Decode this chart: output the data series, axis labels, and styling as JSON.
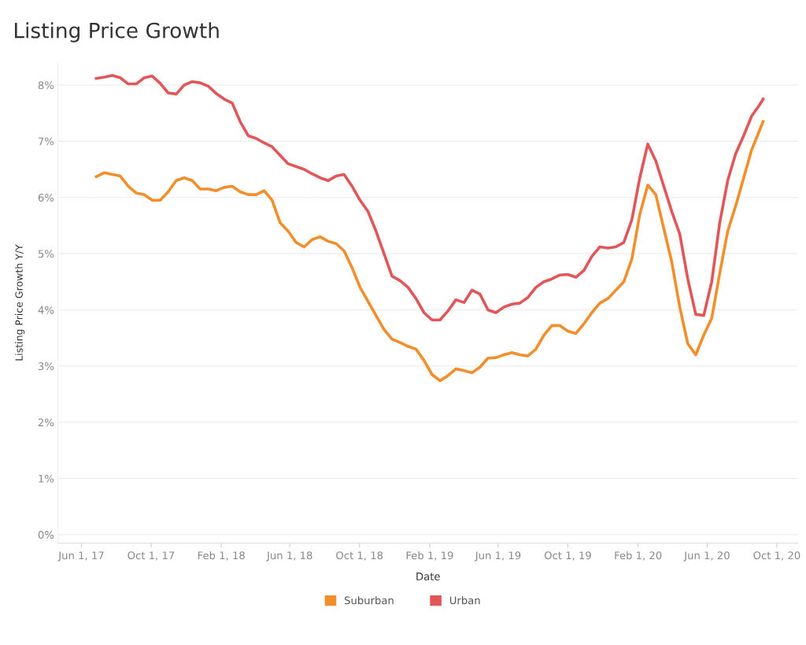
{
  "chart_data": {
    "type": "line",
    "title": "Listing Price Growth",
    "xlabel": "Date",
    "ylabel": "Listing Price Growth Y/Y",
    "x": [
      "2017-06-27",
      "2017-07-11",
      "2017-07-25",
      "2017-08-08",
      "2017-08-22",
      "2017-09-05",
      "2017-09-19",
      "2017-10-03",
      "2017-10-17",
      "2017-10-31",
      "2017-11-14",
      "2017-11-28",
      "2017-12-12",
      "2017-12-26",
      "2018-01-09",
      "2018-01-23",
      "2018-02-06",
      "2018-02-20",
      "2018-03-06",
      "2018-03-20",
      "2018-04-03",
      "2018-04-17",
      "2018-05-01",
      "2018-05-15",
      "2018-05-29",
      "2018-06-12",
      "2018-06-26",
      "2018-07-10",
      "2018-07-24",
      "2018-08-07",
      "2018-08-21",
      "2018-09-04",
      "2018-09-18",
      "2018-10-02",
      "2018-10-16",
      "2018-10-30",
      "2018-11-13",
      "2018-11-27",
      "2018-12-11",
      "2018-12-25",
      "2019-01-08",
      "2019-01-22",
      "2019-02-05",
      "2019-02-19",
      "2019-03-05",
      "2019-03-19",
      "2019-04-02",
      "2019-04-16",
      "2019-04-30",
      "2019-05-14",
      "2019-05-28",
      "2019-06-11",
      "2019-06-25",
      "2019-07-09",
      "2019-07-23",
      "2019-08-06",
      "2019-08-20",
      "2019-09-03",
      "2019-09-17",
      "2019-10-01",
      "2019-10-15",
      "2019-10-29",
      "2019-11-12",
      "2019-11-26",
      "2019-12-10",
      "2019-12-24",
      "2020-01-07",
      "2020-01-21",
      "2020-02-04",
      "2020-02-18",
      "2020-03-03",
      "2020-03-17",
      "2020-03-31",
      "2020-04-14",
      "2020-04-28",
      "2020-05-12",
      "2020-05-26",
      "2020-06-09",
      "2020-06-23",
      "2020-07-07",
      "2020-07-21",
      "2020-08-04",
      "2020-08-18",
      "2020-09-01",
      "2020-09-07"
    ],
    "series": [
      {
        "name": "Suburban",
        "color": "#f28e2b",
        "values": [
          6.37,
          6.44,
          6.41,
          6.38,
          6.2,
          6.08,
          6.05,
          5.95,
          5.95,
          6.1,
          6.3,
          6.35,
          6.3,
          6.15,
          6.15,
          6.12,
          6.18,
          6.2,
          6.1,
          6.05,
          6.05,
          6.12,
          5.95,
          5.55,
          5.4,
          5.2,
          5.12,
          5.25,
          5.3,
          5.22,
          5.18,
          5.05,
          4.75,
          4.4,
          4.15,
          3.9,
          3.65,
          3.48,
          3.42,
          3.35,
          3.3,
          3.1,
          2.85,
          2.74,
          2.83,
          2.95,
          2.92,
          2.88,
          2.98,
          3.14,
          3.15,
          3.2,
          3.24,
          3.2,
          3.18,
          3.3,
          3.55,
          3.72,
          3.72,
          3.62,
          3.58,
          3.75,
          3.95,
          4.12,
          4.2,
          4.35,
          4.5,
          4.9,
          5.7,
          6.22,
          6.05,
          5.45,
          4.85,
          4.05,
          3.4,
          3.2,
          3.55,
          3.85,
          4.65,
          5.4,
          5.85,
          6.35,
          6.85,
          7.2,
          7.35
        ]
      },
      {
        "name": "Urban",
        "color": "#e15759",
        "values": [
          8.12,
          8.14,
          8.17,
          8.13,
          8.02,
          8.02,
          8.13,
          8.16,
          8.03,
          7.86,
          7.84,
          8.0,
          8.06,
          8.04,
          7.98,
          7.85,
          7.75,
          7.68,
          7.35,
          7.1,
          7.05,
          6.97,
          6.9,
          6.75,
          6.6,
          6.55,
          6.5,
          6.42,
          6.35,
          6.3,
          6.38,
          6.41,
          6.2,
          5.95,
          5.75,
          5.4,
          5.0,
          4.6,
          4.52,
          4.4,
          4.2,
          3.95,
          3.82,
          3.82,
          3.98,
          4.18,
          4.13,
          4.35,
          4.28,
          4.0,
          3.95,
          4.05,
          4.1,
          4.12,
          4.22,
          4.4,
          4.5,
          4.55,
          4.62,
          4.63,
          4.58,
          4.7,
          4.95,
          5.12,
          5.1,
          5.12,
          5.2,
          5.6,
          6.35,
          6.95,
          6.65,
          6.2,
          5.75,
          5.35,
          4.55,
          3.92,
          3.9,
          4.5,
          5.55,
          6.3,
          6.78,
          7.1,
          7.45,
          7.65,
          7.75
        ]
      }
    ],
    "xlim": [
      "2017-04-21",
      "2020-11-07"
    ],
    "xticks": [
      {
        "value": "2017-06-01",
        "label": "Jun 1, 17"
      },
      {
        "value": "2017-10-01",
        "label": "Oct 1, 17"
      },
      {
        "value": "2018-02-01",
        "label": "Feb 1, 18"
      },
      {
        "value": "2018-06-01",
        "label": "Jun 1, 18"
      },
      {
        "value": "2018-10-01",
        "label": "Oct 1, 18"
      },
      {
        "value": "2019-02-01",
        "label": "Feb 1, 19"
      },
      {
        "value": "2019-06-01",
        "label": "Jun 1, 19"
      },
      {
        "value": "2019-10-01",
        "label": "Oct 1, 19"
      },
      {
        "value": "2020-02-01",
        "label": "Feb 1, 20"
      },
      {
        "value": "2020-06-01",
        "label": "Jun 1, 20"
      },
      {
        "value": "2020-10-01",
        "label": "Oct 1, 20"
      }
    ],
    "ylim": [
      -0.15,
      8.4
    ],
    "yticks": [
      {
        "value": 0,
        "label": "0%"
      },
      {
        "value": 1,
        "label": "1%"
      },
      {
        "value": 2,
        "label": "2%"
      },
      {
        "value": 3,
        "label": "3%"
      },
      {
        "value": 4,
        "label": "4%"
      },
      {
        "value": 5,
        "label": "5%"
      },
      {
        "value": 6,
        "label": "6%"
      },
      {
        "value": 7,
        "label": "7%"
      },
      {
        "value": 8,
        "label": "8%"
      }
    ],
    "grid": "y",
    "legend": "bottom",
    "marker": "none",
    "line_style": "solid"
  }
}
